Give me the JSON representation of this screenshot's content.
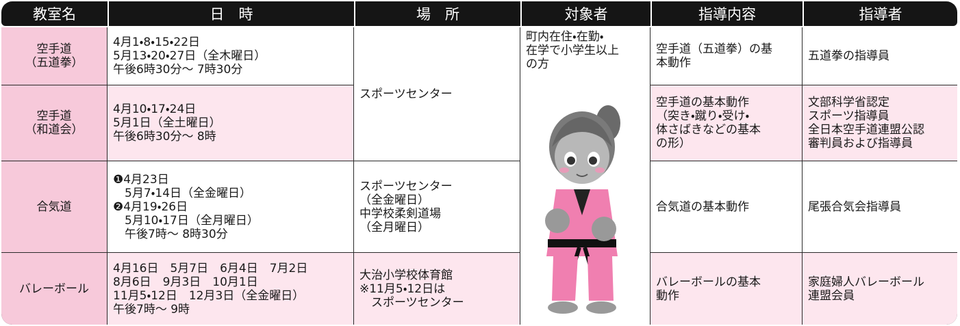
{
  "header": [
    "教室名",
    "日　時",
    "場　所",
    "対象者",
    "指導内容",
    "指導者"
  ],
  "target": [
    "町内在住・在勤・",
    "在学で小学生以上",
    "の方"
  ],
  "rows": [
    {
      "name": [
        "空手道",
        "（五道拳）"
      ],
      "schedule": [
        "4月1・8・15・22日",
        "5月13・20・27日（全木曜日）",
        "午後6時30分～ 7時30分"
      ],
      "place": [
        "スポーツセンター"
      ],
      "content": [
        "空手道（五道拳）の基",
        "本動作"
      ],
      "instructor": [
        "五道拳の指導員"
      ]
    },
    {
      "name": [
        "空手道",
        "（和道会）"
      ],
      "schedule": [
        "4月10・17・24日",
        "5月1日（全土曜日）",
        "午後6時30分～ 8時"
      ],
      "content": [
        "空手道の基本動作",
        "（突き・蹴り・受け・",
        "体さばきなどの基本",
        "の形）"
      ],
      "instructor": [
        "文部科学省認定",
        "スポーツ指導員",
        "全日本空手道連盟公認",
        "審判員および指導員"
      ]
    },
    {
      "name": [
        "合気道"
      ],
      "schedule": [
        "❶4月23日",
        "　5月7・14日（全金曜日）",
        "❷4月19・26日",
        "　5月10・17日（全月曜日）",
        "　午後7時～ 8時30分"
      ],
      "place": [
        "スポーツセンター",
        "（全金曜日）",
        "中学校柔剣道場",
        "（全月曜日）"
      ],
      "content": [
        "合気道の基本動作"
      ],
      "instructor": [
        "尾張合気会指導員"
      ]
    },
    {
      "name": [
        "バレーボール"
      ],
      "schedule": [
        "4月16日　5月7日　6月4日　7月2日",
        "8月6日　9月3日　10月1日",
        "11月5・12日　12月3日（全金曜日）",
        "午後7時～ 9時"
      ],
      "place": [
        "大治小学校体育館",
        "※11月5・12日は",
        "　スポーツセンター"
      ],
      "content": [
        "バレーボールの基本",
        "動作"
      ],
      "instructor": [
        "家庭婦人バレーボール",
        "連盟会員"
      ]
    }
  ]
}
